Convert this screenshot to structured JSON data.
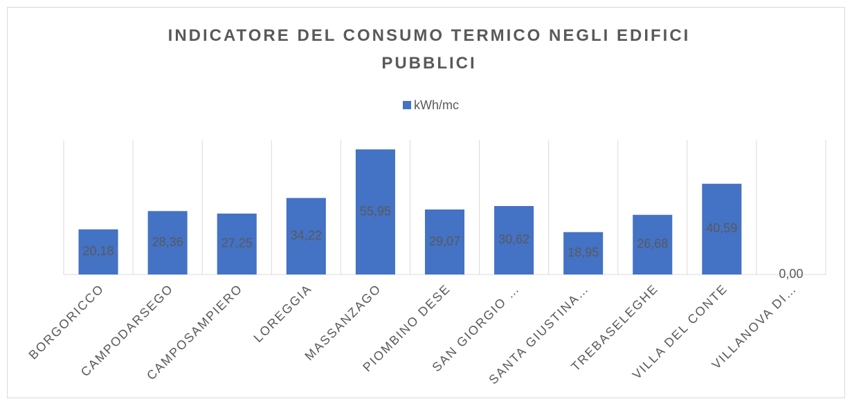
{
  "chart_data": {
    "type": "bar",
    "title": "INDICATORE DEL CONSUMO TERMICO NEGLI EDIFICI PUBBLICI",
    "categories": [
      "BORGORICCO",
      "CAMPODARSEGO",
      "CAMPOSAMPIERO",
      "LOREGGIA",
      "MASSANZAGO",
      "PIOMBINO DESE",
      "SAN GIORGIO …",
      "SANTA GIUSTINA…",
      "TREBASELEGHE",
      "VILLA DEL CONTE",
      "VILLANOVA DI…"
    ],
    "series": [
      {
        "name": "kWh/mc",
        "color": "#4472c4",
        "values": [
          20.18,
          28.36,
          27.25,
          34.22,
          55.95,
          29.07,
          30.62,
          18.95,
          26.68,
          40.59,
          0
        ],
        "value_labels": [
          "20,18",
          "28,36",
          "27,25",
          "34,22",
          "55,95",
          "29,07",
          "30,62",
          "18,95",
          "26,68",
          "40,59",
          "0,00"
        ]
      }
    ],
    "ylim": [
      0,
      60
    ],
    "grid": true
  }
}
